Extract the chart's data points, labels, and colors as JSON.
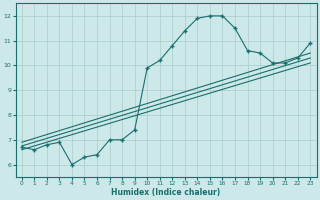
{
  "xlabel": "Humidex (Indice chaleur)",
  "bg_color": "#cce8e8",
  "grid_color": "#aacccc",
  "line_color": "#1a6e6e",
  "xlim": [
    -0.5,
    23.5
  ],
  "ylim": [
    5.5,
    12.5
  ],
  "xticks": [
    0,
    1,
    2,
    3,
    4,
    5,
    6,
    7,
    8,
    9,
    10,
    11,
    12,
    13,
    14,
    15,
    16,
    17,
    18,
    19,
    20,
    21,
    22,
    23
  ],
  "yticks": [
    6,
    7,
    8,
    9,
    10,
    11,
    12
  ],
  "main_x": [
    0,
    1,
    2,
    3,
    4,
    5,
    6,
    7,
    8,
    9,
    10,
    11,
    12,
    13,
    14,
    15,
    16,
    17,
    18,
    19,
    20,
    21,
    22,
    23
  ],
  "main_y": [
    6.7,
    6.6,
    6.8,
    6.9,
    6.0,
    6.3,
    6.4,
    7.0,
    7.0,
    7.4,
    9.9,
    10.2,
    10.8,
    11.4,
    11.9,
    12.0,
    12.0,
    11.5,
    10.6,
    10.5,
    10.1,
    10.1,
    10.3,
    10.9
  ],
  "line1_x": [
    0,
    23
  ],
  "line1_y": [
    6.6,
    10.1
  ],
  "line2_x": [
    0,
    23
  ],
  "line2_y": [
    6.75,
    10.3
  ],
  "line3_x": [
    0,
    23
  ],
  "line3_y": [
    6.9,
    10.5
  ]
}
